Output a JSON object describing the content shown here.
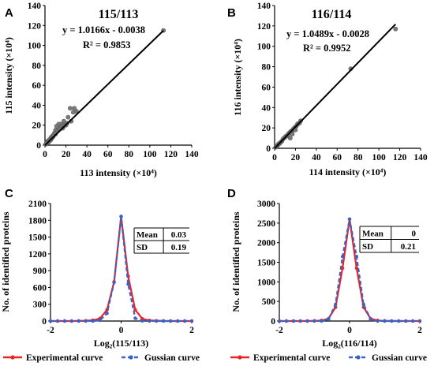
{
  "chart_data": [
    {
      "panel": "A",
      "type": "scatter",
      "title": "115/113",
      "xlabel": "113 intensity (×10⁴)",
      "ylabel": "115 intensity (×10⁴)",
      "xlim": [
        0,
        140
      ],
      "ylim": [
        0,
        140
      ],
      "xticks": [
        0,
        20,
        40,
        60,
        80,
        100,
        120,
        140
      ],
      "yticks": [
        0,
        20,
        40,
        60,
        80,
        100,
        120,
        140
      ],
      "equation": "y = 1.0166x - 0.0038",
      "r2": "R² = 0.9853",
      "trendline": {
        "slope": 1.0166,
        "intercept": -0.0038,
        "x": [
          0,
          113
        ]
      },
      "points": [
        [
          113,
          115
        ],
        [
          30,
          34
        ],
        [
          27,
          33
        ],
        [
          24,
          37
        ],
        [
          28,
          37
        ],
        [
          22,
          28
        ],
        [
          21,
          22
        ],
        [
          18,
          24
        ],
        [
          16,
          20
        ],
        [
          15,
          21
        ],
        [
          14,
          18
        ],
        [
          13,
          21
        ],
        [
          12,
          18
        ],
        [
          11,
          19
        ],
        [
          10,
          15
        ],
        [
          9,
          12
        ],
        [
          8,
          10
        ],
        [
          7,
          9
        ],
        [
          6,
          8
        ],
        [
          5,
          6
        ],
        [
          4,
          5
        ],
        [
          3,
          4
        ],
        [
          2,
          3
        ],
        [
          1.5,
          2
        ],
        [
          1,
          1.2
        ],
        [
          0.6,
          0.8
        ],
        [
          2.5,
          4
        ],
        [
          3.5,
          3
        ],
        [
          4.5,
          6
        ],
        [
          5.5,
          5
        ],
        [
          6.5,
          7
        ],
        [
          7.5,
          8
        ],
        [
          12,
          14
        ],
        [
          17,
          17
        ],
        [
          19,
          20
        ],
        [
          20,
          20
        ],
        [
          25,
          24
        ],
        [
          14,
          16
        ],
        [
          10,
          11
        ],
        [
          8,
          9
        ],
        [
          3,
          3.5
        ],
        [
          1,
          1.5
        ]
      ]
    },
    {
      "panel": "B",
      "type": "scatter",
      "title": "116/114",
      "xlabel": "114 intensity (×10⁴)",
      "ylabel": "116 intensity (×10⁴)",
      "xlim": [
        0,
        140
      ],
      "ylim": [
        0,
        140
      ],
      "xticks": [
        0,
        20,
        40,
        60,
        80,
        100,
        120,
        140
      ],
      "yticks": [
        0,
        20,
        40,
        60,
        80,
        100,
        120,
        140
      ],
      "equation": "y = 1.0489x - 0.0028",
      "r2": "R² = 0.9952",
      "trendline": {
        "slope": 1.0489,
        "intercept": -0.0028,
        "x": [
          0,
          116
        ]
      },
      "points": [
        [
          116,
          117
        ],
        [
          73,
          78
        ],
        [
          25,
          27
        ],
        [
          24,
          25
        ],
        [
          22,
          24
        ],
        [
          21,
          22
        ],
        [
          20,
          21
        ],
        [
          19,
          20
        ],
        [
          18,
          19
        ],
        [
          17,
          17
        ],
        [
          16,
          17
        ],
        [
          15,
          16
        ],
        [
          14,
          15
        ],
        [
          13,
          14
        ],
        [
          12,
          12
        ],
        [
          11,
          12
        ],
        [
          10,
          11
        ],
        [
          9,
          10
        ],
        [
          8,
          9
        ],
        [
          7,
          7
        ],
        [
          6,
          6
        ],
        [
          5,
          5
        ],
        [
          4,
          4
        ],
        [
          3,
          3
        ],
        [
          2,
          2
        ],
        [
          1,
          1
        ],
        [
          1.5,
          1.5
        ],
        [
          2.5,
          2.5
        ],
        [
          3.5,
          4
        ],
        [
          4.5,
          5
        ],
        [
          15,
          10
        ],
        [
          17,
          14
        ],
        [
          20,
          18
        ],
        [
          23,
          24
        ]
      ]
    },
    {
      "panel": "C",
      "type": "line",
      "xlabel": "Log₂(115/113)",
      "ylabel": "No. of identified proteins",
      "xlim": [
        -2,
        2
      ],
      "ylim": [
        0,
        2100
      ],
      "xticks": [
        -2,
        0,
        2
      ],
      "yticks": [
        0,
        300,
        600,
        900,
        1200,
        1500,
        1800,
        2100
      ],
      "stats": [
        {
          "label": "Mean",
          "value": "0.03"
        },
        {
          "label": "SD",
          "value": "0.19"
        }
      ],
      "series": [
        {
          "name": "Experimental curve",
          "color": "#e8252b",
          "x": [
            -2,
            -1.8,
            -1.6,
            -1.4,
            -1.2,
            -1.0,
            -0.8,
            -0.6,
            -0.4,
            -0.2,
            0.0,
            0.2,
            0.4,
            0.6,
            0.8,
            1.0,
            1.2,
            1.4,
            1.6,
            1.8,
            2.0
          ],
          "y": [
            0,
            0,
            0,
            0,
            2,
            5,
            15,
            45,
            200,
            700,
            1870,
            800,
            200,
            40,
            12,
            5,
            2,
            0,
            0,
            0,
            0
          ]
        },
        {
          "name": "Gussian curve",
          "color": "#3b62c3",
          "x": [
            -2,
            -1.8,
            -1.6,
            -1.4,
            -1.2,
            -1.0,
            -0.8,
            -0.6,
            -0.4,
            -0.2,
            0.0,
            0.2,
            0.4,
            0.6,
            0.8,
            1.0,
            1.2,
            1.4,
            1.6,
            1.8,
            2.0
          ],
          "y": [
            0,
            0,
            0,
            0,
            0,
            0,
            1,
            13,
            139,
            690,
            1868,
            660,
            50,
            2,
            0,
            0,
            0,
            0,
            0,
            0,
            0
          ]
        }
      ]
    },
    {
      "panel": "D",
      "type": "line",
      "xlabel": "Log₂(116/114)",
      "ylabel": "No. of identified proteins",
      "xlim": [
        -2,
        2
      ],
      "ylim": [
        0,
        3000
      ],
      "xticks": [
        -2,
        0,
        2
      ],
      "yticks": [
        0,
        500,
        1000,
        1500,
        2000,
        2500,
        3000
      ],
      "stats": [
        {
          "label": "Mean",
          "value": "0"
        },
        {
          "label": "SD",
          "value": "0.21"
        }
      ],
      "series": [
        {
          "name": "Experimental curve",
          "color": "#e8252b",
          "x": [
            -2,
            -1.8,
            -1.6,
            -1.4,
            -1.2,
            -1.0,
            -0.8,
            -0.6,
            -0.4,
            -0.2,
            0.0,
            0.2,
            0.4,
            0.6,
            0.8,
            1.0,
            1.2,
            1.4,
            1.6,
            1.8,
            2.0
          ],
          "y": [
            0,
            0,
            0,
            0,
            2,
            5,
            15,
            60,
            350,
            1350,
            2600,
            1350,
            350,
            60,
            15,
            5,
            2,
            0,
            0,
            0,
            0
          ]
        },
        {
          "name": "Gussian curve",
          "color": "#3b62c3",
          "x": [
            -2,
            -1.8,
            -1.6,
            -1.4,
            -1.2,
            -1.0,
            -0.8,
            -0.6,
            -0.4,
            -0.2,
            0.0,
            0.2,
            0.4,
            0.6,
            0.8,
            1.0,
            1.2,
            1.4,
            1.6,
            1.8,
            2.0
          ],
          "y": [
            0,
            0,
            0,
            0,
            0,
            0,
            2,
            45,
            424,
            1646,
            2600,
            1646,
            424,
            45,
            2,
            0,
            0,
            0,
            0,
            0,
            0
          ]
        }
      ]
    }
  ],
  "legend": [
    {
      "label": "Experimental curve",
      "color": "#e8252b"
    },
    {
      "label": "Gussian curve",
      "color": "#3b62c3"
    }
  ]
}
